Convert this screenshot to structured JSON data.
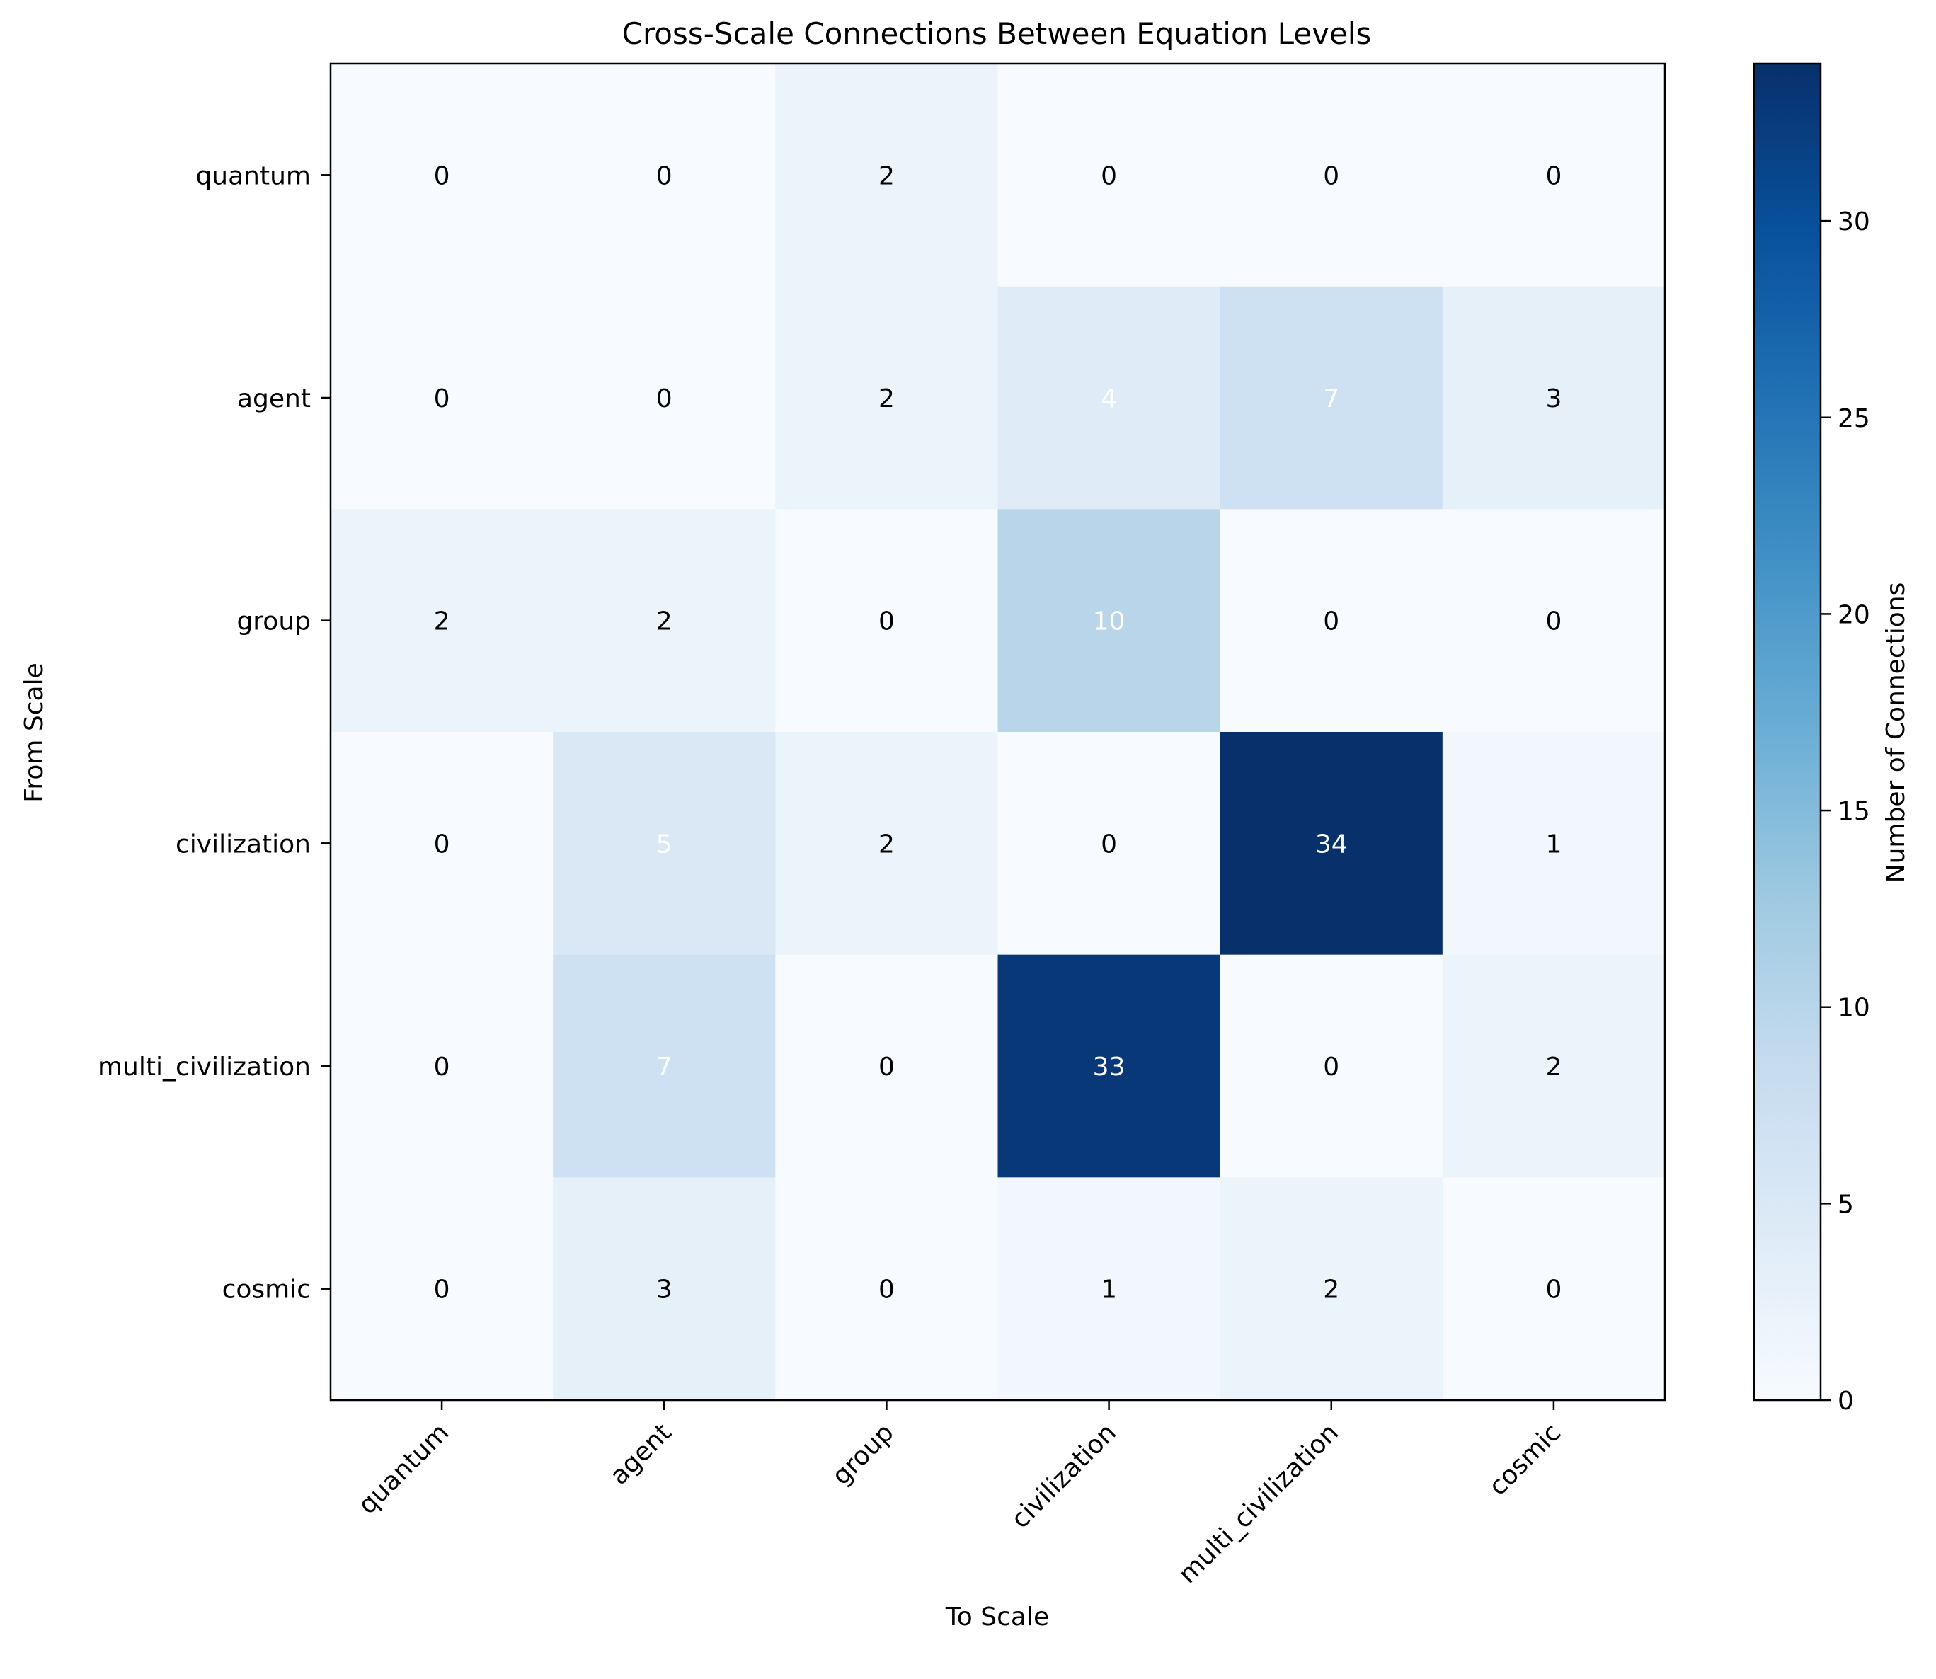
{
  "chart_data": {
    "type": "heatmap",
    "title": "Cross-Scale Connections Between Equation Levels",
    "xlabel": "To Scale",
    "ylabel": "From Scale",
    "x_categories": [
      "quantum",
      "agent",
      "group",
      "civilization",
      "multi_civilization",
      "cosmic"
    ],
    "y_categories": [
      "quantum",
      "agent",
      "group",
      "civilization",
      "multi_civilization",
      "cosmic"
    ],
    "values": [
      [
        0,
        0,
        2,
        0,
        0,
        0
      ],
      [
        0,
        0,
        2,
        4,
        7,
        3
      ],
      [
        2,
        2,
        0,
        10,
        0,
        0
      ],
      [
        0,
        5,
        2,
        0,
        34,
        1
      ],
      [
        0,
        7,
        0,
        33,
        0,
        2
      ],
      [
        0,
        3,
        0,
        1,
        2,
        0
      ]
    ],
    "colormap": "Blues",
    "colorbar": {
      "label": "Number of Connections",
      "range": [
        0,
        34
      ],
      "ticks": [
        0,
        5,
        10,
        15,
        20,
        25,
        30
      ]
    },
    "colors": {
      "low": "#f7fbff",
      "high": "#08306b",
      "text_dark": "#000000",
      "text_light": "#ffffff"
    }
  }
}
